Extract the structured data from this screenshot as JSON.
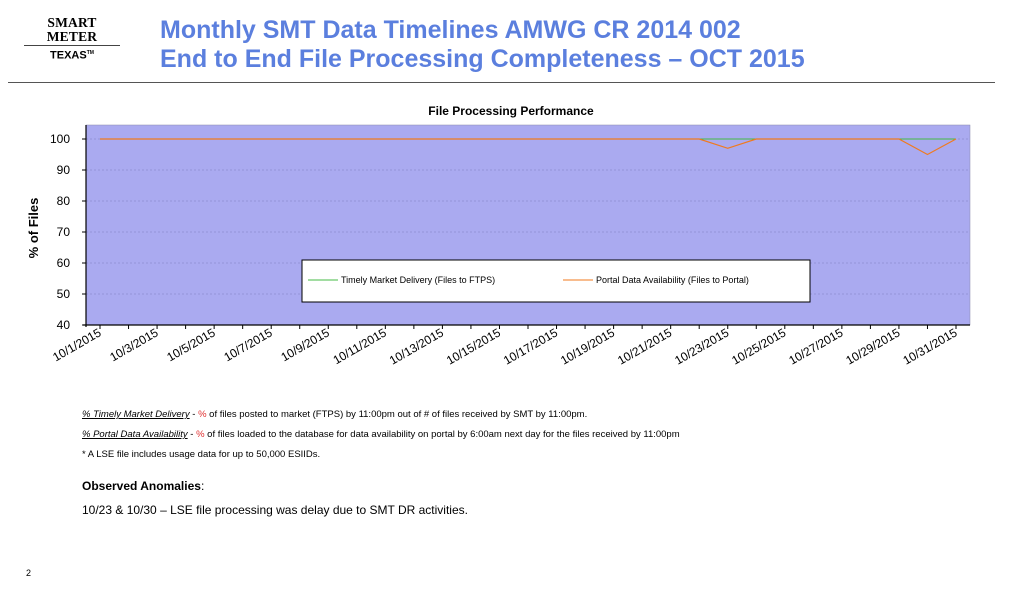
{
  "logo": {
    "line1": "SMART METER",
    "line2": "TEXAS",
    "tm": "TM"
  },
  "title": {
    "line1": "Monthly SMT Data Timelines AMWG CR 2014 002",
    "line2": "End to End File Processing Completeness – OCT 2015"
  },
  "colors": {
    "title": "#5b7fde",
    "plot_bg": "#aaaaf0",
    "series_timely": "#44bb44",
    "series_portal": "#f07a1e"
  },
  "chart_data": {
    "type": "line",
    "title": "File Processing Performance",
    "ylabel": "% of Files",
    "xlabel": "",
    "ylim": [
      40,
      100
    ],
    "yticks": [
      40,
      50,
      60,
      70,
      80,
      90,
      100
    ],
    "grid": true,
    "legend_position": "center",
    "x": [
      "10/1/2015",
      "10/2/2015",
      "10/3/2015",
      "10/4/2015",
      "10/5/2015",
      "10/6/2015",
      "10/7/2015",
      "10/8/2015",
      "10/9/2015",
      "10/10/2015",
      "10/11/2015",
      "10/12/2015",
      "10/13/2015",
      "10/14/2015",
      "10/15/2015",
      "10/16/2015",
      "10/17/2015",
      "10/18/2015",
      "10/19/2015",
      "10/20/2015",
      "10/21/2015",
      "10/22/2015",
      "10/23/2015",
      "10/24/2015",
      "10/25/2015",
      "10/26/2015",
      "10/27/2015",
      "10/28/2015",
      "10/29/2015",
      "10/30/2015",
      "10/31/2015"
    ],
    "xtick_labels": [
      "10/1/2015",
      "10/3/2015",
      "10/5/2015",
      "10/7/2015",
      "10/9/2015",
      "10/11/2015",
      "10/13/2015",
      "10/15/2015",
      "10/17/2015",
      "10/19/2015",
      "10/21/2015",
      "10/23/2015",
      "10/25/2015",
      "10/27/2015",
      "10/29/2015",
      "10/31/2015"
    ],
    "series": [
      {
        "name": "Timely Market Delivery (Files to FTPS)",
        "values": [
          100,
          100,
          100,
          100,
          100,
          100,
          100,
          100,
          100,
          100,
          100,
          100,
          100,
          100,
          100,
          100,
          100,
          100,
          100,
          100,
          100,
          100,
          100,
          100,
          100,
          100,
          100,
          100,
          100,
          100,
          100
        ]
      },
      {
        "name": "Portal Data Availability (Files to Portal)",
        "values": [
          100,
          100,
          100,
          100,
          100,
          100,
          100,
          100,
          100,
          100,
          100,
          100,
          100,
          100,
          100,
          100,
          100,
          100,
          100,
          100,
          100,
          100,
          97,
          100,
          100,
          100,
          100,
          100,
          100,
          95,
          100
        ]
      }
    ]
  },
  "notes": {
    "timely_term": "% Timely Market Delivery",
    "timely_dash": " - ",
    "timely_pct": "%",
    "timely_desc": " of files posted to market (FTPS) by 11:00pm out of # of files received by SMT by 11:00pm.",
    "portal_term": "% Portal Data Availability",
    "portal_dash": " - ",
    "portal_pct": "%",
    "portal_desc": " of files loaded to the database for data availability on portal by 6:00am next day for the files received by 11:00pm",
    "lse": "* A LSE file includes usage data for up to 50,000 ESIIDs."
  },
  "anomalies": {
    "heading": "Observed Anomalies",
    "colon": ":",
    "text": "10/23 & 10/30 – LSE file processing was delay due to SMT DR activities."
  },
  "page_number": "2"
}
